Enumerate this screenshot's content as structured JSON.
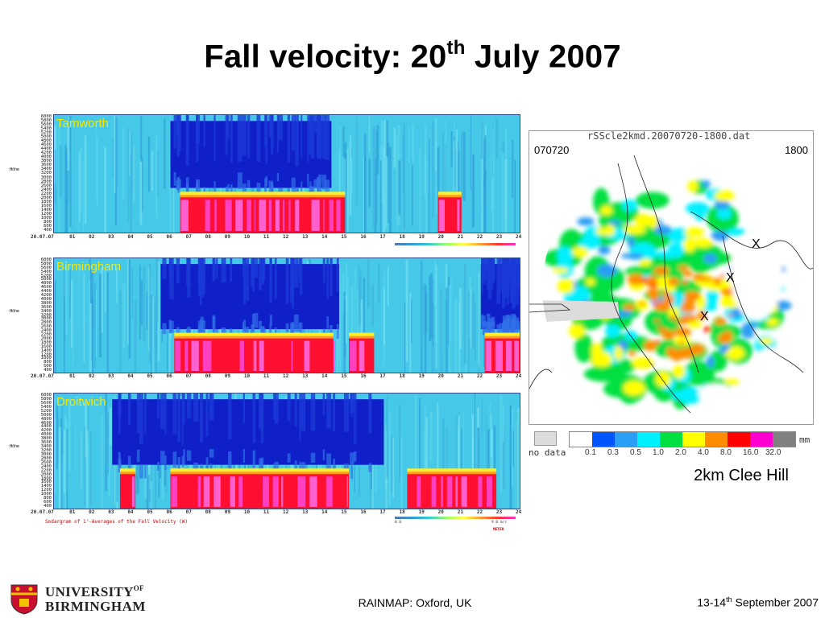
{
  "title": {
    "main": "Fall velocity: 20",
    "sup": "th",
    "rest": " July 2007"
  },
  "chart_data": [
    {
      "type": "heatmap",
      "name": "Tamworth",
      "label": "Tamworth",
      "x_date_label": "20.07.07",
      "x_ticks": [
        "01",
        "02",
        "03",
        "04",
        "05",
        "06",
        "07",
        "08",
        "09",
        "10",
        "11",
        "12",
        "13",
        "14",
        "15",
        "16",
        "17",
        "18",
        "19",
        "20",
        "21",
        "22",
        "23",
        "24"
      ],
      "y_ticks": [
        "6000",
        "5800",
        "5600",
        "5400",
        "5200",
        "5000",
        "4800",
        "4600",
        "4400",
        "4200",
        "4000",
        "3800",
        "3600",
        "3400",
        "3200",
        "3000",
        "2800",
        "2600",
        "2400",
        "2200",
        "2000",
        "1800",
        "1600",
        "1400",
        "1200",
        "1000",
        "800",
        "600",
        "400"
      ],
      "ylabel": "Höhe",
      "precip_periods_hours": [
        [
          6.5,
          15
        ],
        [
          19.8,
          21
        ]
      ],
      "blue_top_periods_hours": [
        [
          6,
          14.3
        ]
      ]
    },
    {
      "type": "heatmap",
      "name": "Birmingham",
      "label": "Birmingham",
      "x_date_label": "20.07.07",
      "x_ticks": [
        "01",
        "02",
        "03",
        "04",
        "05",
        "06",
        "07",
        "08",
        "09",
        "10",
        "11",
        "12",
        "13",
        "14",
        "15",
        "16",
        "17",
        "18",
        "19",
        "20",
        "21",
        "22",
        "23",
        "24"
      ],
      "y_ticks": [
        "6000",
        "5800",
        "5600",
        "5400",
        "5200",
        "5000",
        "4800",
        "4600",
        "4400",
        "4200",
        "4000",
        "3800",
        "3600",
        "3400",
        "3200",
        "3000",
        "2800",
        "2600",
        "2400",
        "2200",
        "2000",
        "1800",
        "1600",
        "1400",
        "1200",
        "1000",
        "800",
        "600",
        "400"
      ],
      "ylabel": "Höhe",
      "precip_periods_hours": [
        [
          6.2,
          14.4
        ],
        [
          15.2,
          16.5
        ],
        [
          22.2,
          24
        ]
      ],
      "blue_top_periods_hours": [
        [
          5.5,
          14.7
        ],
        [
          22,
          24
        ]
      ]
    },
    {
      "type": "heatmap",
      "name": "Droitwich",
      "label": "Droitwich",
      "x_date_label": "20.07.07",
      "x_ticks": [
        "01",
        "02",
        "03",
        "04",
        "05",
        "06",
        "07",
        "08",
        "09",
        "10",
        "11",
        "12",
        "13",
        "14",
        "15",
        "16",
        "17",
        "18",
        "19",
        "20",
        "21",
        "22",
        "23",
        "24"
      ],
      "y_ticks": [
        "6000",
        "5800",
        "5600",
        "5400",
        "5200",
        "5000",
        "4800",
        "4600",
        "4400",
        "4200",
        "4000",
        "3800",
        "3600",
        "3400",
        "3200",
        "3000",
        "2800",
        "2600",
        "2400",
        "2200",
        "2000",
        "1800",
        "1600",
        "1400",
        "1200",
        "1000",
        "800",
        "600",
        "400"
      ],
      "ylabel": "Höhe",
      "precip_periods_hours": [
        [
          3.4,
          4.2
        ],
        [
          6,
          15.2
        ],
        [
          18.2,
          22.8
        ]
      ],
      "blue_top_periods_hours": [
        [
          3,
          17
        ]
      ],
      "caption": "Sodargram of 1'-Averages of the Fall Velocity (W)",
      "colorbar_min": "0.0",
      "colorbar_max": "9.0 m/s",
      "colorbar_unit": "METEK"
    }
  ],
  "radar": {
    "header": "rSScle2kmd.20070720-1800.dat",
    "date": "070720",
    "time": "1800",
    "markers": [
      "X",
      "X",
      "X"
    ],
    "legend": {
      "nodata_label": "no data",
      "unit": "mm",
      "values": [
        "0.1",
        "0.3",
        "0.5",
        "1.0",
        "2.0",
        "4.0",
        "8.0",
        "16.0",
        "32.0"
      ],
      "colors": [
        "#ffffff",
        "#0055ff",
        "#2a9df4",
        "#00f0ff",
        "#00e040",
        "#ffff00",
        "#ff8c00",
        "#ff0000",
        "#ff00d0",
        "#808080"
      ]
    },
    "site_label": "2km Clee Hill"
  },
  "footer": {
    "center": "RAINMAP: Oxford, UK",
    "right_main": "13-14",
    "right_sup": "th",
    "right_rest": " September 2007"
  },
  "logo": {
    "line1": "UNIVERSITY",
    "of": "OF",
    "line2": "BIRMINGHAM",
    "crest_icon": "university-crest-icon"
  }
}
